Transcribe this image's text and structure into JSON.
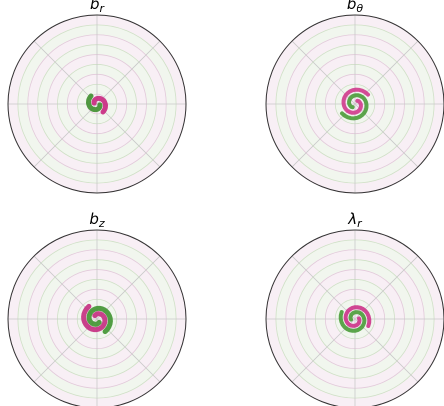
{
  "panels": [
    {
      "title": {
        "base": "b",
        "sub": "r"
      }
    },
    {
      "title": {
        "base": "b",
        "sub": "θ"
      }
    },
    {
      "title": {
        "base": "b",
        "sub": "z"
      }
    },
    {
      "title": {
        "base": "λ",
        "sub": "r"
      }
    }
  ]
}
